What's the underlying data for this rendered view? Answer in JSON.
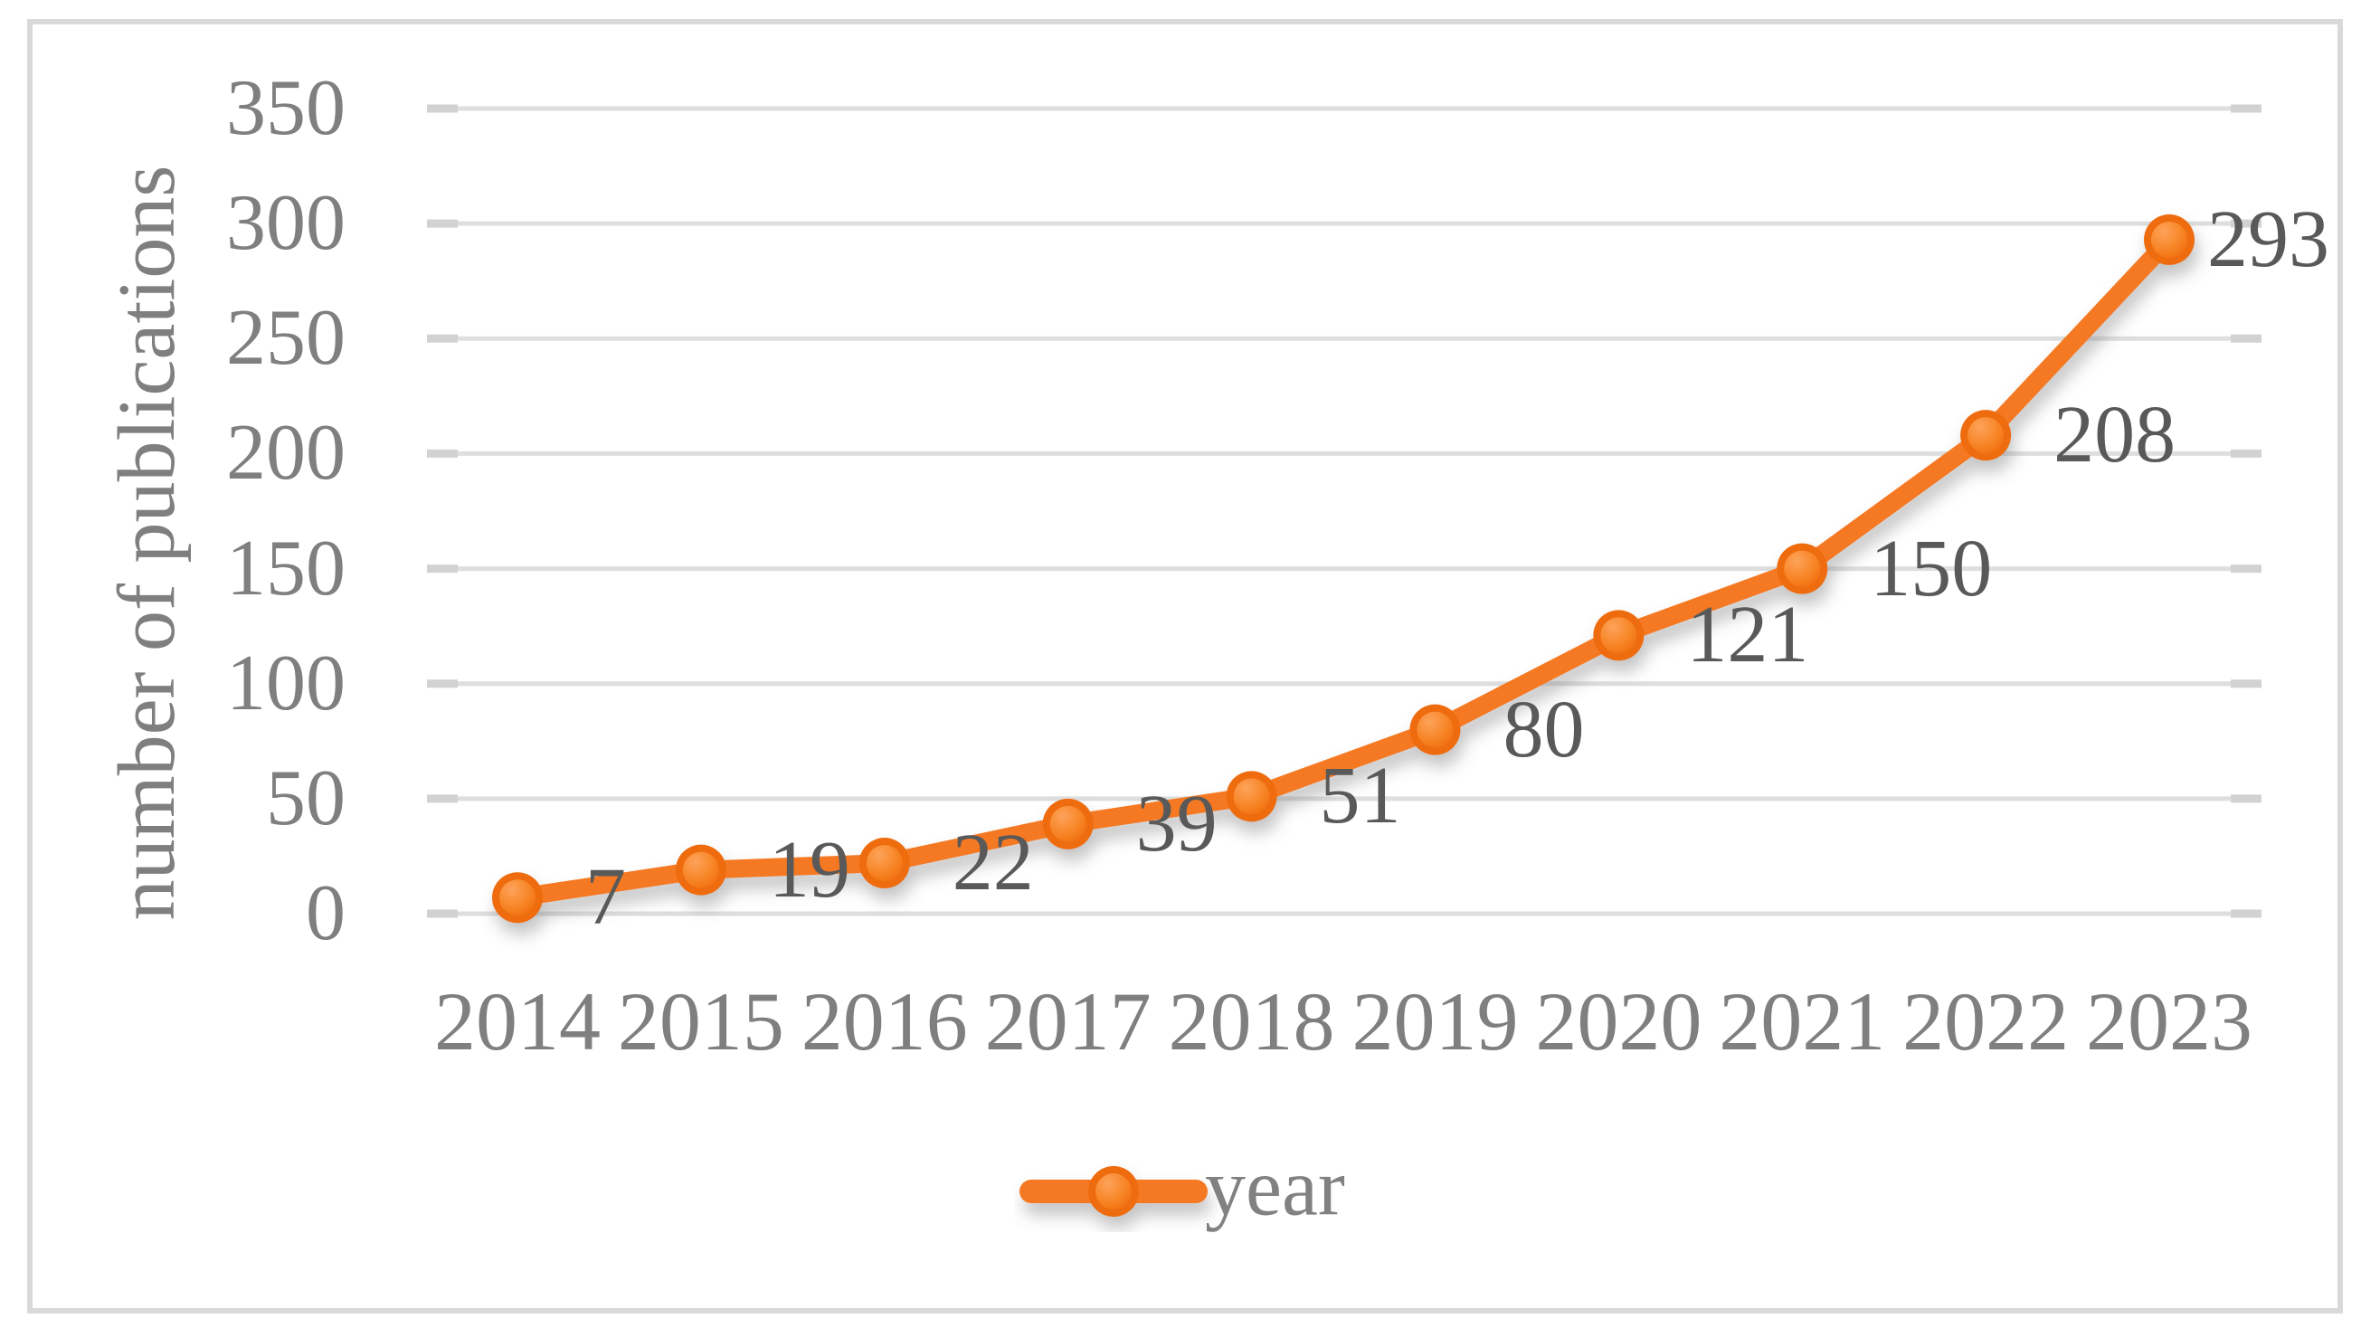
{
  "chart_data": {
    "type": "line",
    "title": "",
    "categories": [
      "2014",
      "2015",
      "2016",
      "2017",
      "2018",
      "2019",
      "2020",
      "2021",
      "2022",
      "2023"
    ],
    "series": [
      {
        "name": "year",
        "values": [
          7,
          19,
          22,
          39,
          51,
          80,
          121,
          150,
          208,
          293
        ]
      }
    ],
    "xlabel": "",
    "ylabel": "number of publications",
    "ylim": [
      0,
      350
    ],
    "ytick_step": 50,
    "yticks": [
      "0",
      "50",
      "100",
      "150",
      "200",
      "250",
      "300",
      "350"
    ],
    "grid": true,
    "legend": {
      "position": "bottom",
      "entries": [
        "year"
      ]
    },
    "colors": {
      "series_line": "#F57920",
      "marker_ring": "#EE6C10",
      "marker_highlight": "#FDA35B",
      "marker_mid": "#F8892C",
      "marker_deep": "#F1700E",
      "gridline": "#DEDEDE",
      "tick_mark": "#D2D2D2",
      "axis_text": "#7F7F7F",
      "data_label_text": "#595959",
      "legend_text": "#818181",
      "frame_border": "#D9D9D9",
      "background": "#FFFFFF"
    }
  }
}
